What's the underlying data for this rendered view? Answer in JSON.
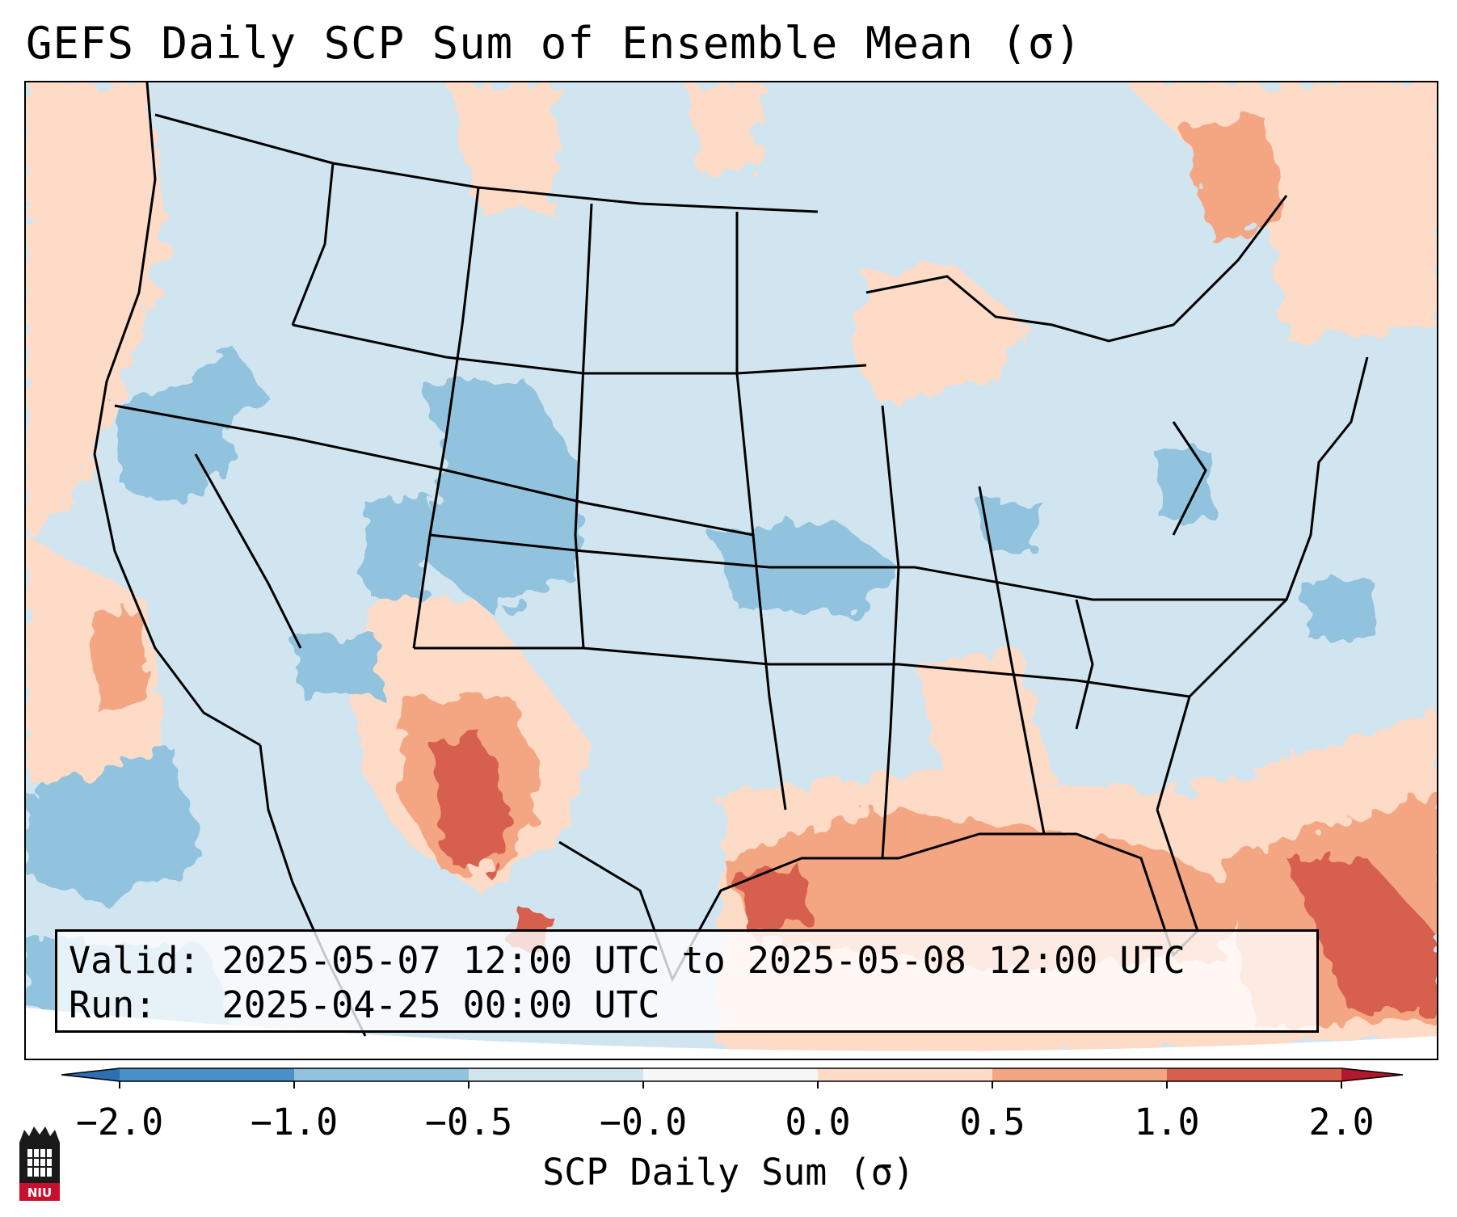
{
  "title": "GEFS Daily SCP Sum of Ensemble Mean (σ)",
  "info": {
    "valid_label": "Valid:",
    "valid_value": "2025-05-07 12:00 UTC to 2025-05-08 12:00 UTC",
    "run_label": "Run:",
    "run_value": "2025-04-25 00:00 UTC"
  },
  "colorbar": {
    "label": "SCP Daily Sum (σ)",
    "ticks": [
      "−2.0",
      "−1.0",
      "−0.5",
      "−0.0",
      "0.0",
      "0.5",
      "1.0",
      "2.0"
    ],
    "colors": [
      "#4a90c8",
      "#91c3de",
      "#d1e5f0",
      "#f7f7f7",
      "#fddbc7",
      "#f4a582",
      "#d6604d"
    ],
    "extend_low_color": "#2c6fb3",
    "extend_high_color": "#b2182b"
  },
  "map": {
    "background_color": "#d1e5f0",
    "outline_color": "#000000",
    "outside_color": "#ffffff"
  },
  "logo": {
    "text": "NIU"
  }
}
